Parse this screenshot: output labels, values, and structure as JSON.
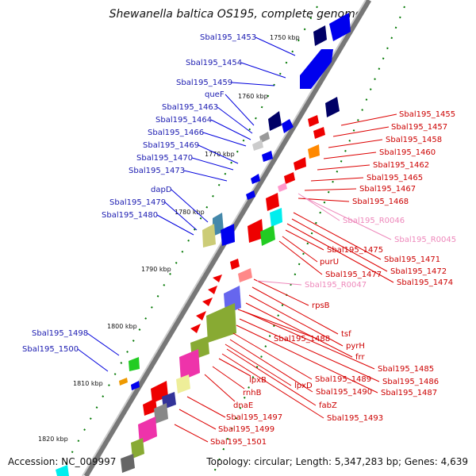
{
  "title": "Shewanella baltica OS195, complete genome",
  "footer": {
    "accession": "Accession: NC_009997",
    "topology": "Topology: circular; Length: 5,347,283 bp; Genes: 4,639"
  },
  "kbp_labels": [
    "1750 kbp",
    "1760 kbp",
    "1770 kbp",
    "1780 kbp",
    "1790 kbp",
    "1800 kbp",
    "1810 kbp",
    "1820 kbp"
  ],
  "blue_labels": [
    "Sbal195_1453",
    "Sbal195_1454",
    "Sbal195_1459",
    "queF",
    "Sbal195_1463",
    "Sbal195_1464",
    "Sbal195_1466",
    "Sbal195_1469",
    "Sbal195_1470",
    "Sbal195_1473",
    "dapD",
    "Sbal195_1479",
    "Sbal195_1480",
    "Sbal195_1498",
    "Sbal195_1500"
  ],
  "red_right_labels": [
    "Sbal195_1455",
    "Sbal195_1457",
    "Sbal195_1458",
    "Sbal195_1460",
    "Sbal195_1462",
    "Sbal195_1465",
    "Sbal195_1467",
    "Sbal195_1468",
    "Sbal195_1471",
    "Sbal195_1472",
    "Sbal195_1474",
    "Sbal195_1475",
    "purU",
    "Sbal195_1477",
    "rpsB",
    "tsf",
    "pyrH",
    "frr",
    "Sbal195_1485",
    "Sbal195_1486",
    "Sbal195_1487",
    "Sbal195_1488",
    "Sbal195_1489",
    "Sbal195_1490",
    "lpxD",
    "fabZ",
    "Sbal195_1493",
    "lpxB",
    "rnhB",
    "dnaE",
    "Sbal195_1497",
    "Sbal195_1499",
    "Sbal195_1501"
  ],
  "pink_labels": [
    "Sbal195_R0046",
    "Sbal195_R0045",
    "Sbal195_R0047"
  ],
  "colors": {
    "forward": "#0000ee",
    "reverse": "#ee0000",
    "rna": "#ee88bb",
    "backbone": "#888888",
    "tick": "#007700"
  }
}
